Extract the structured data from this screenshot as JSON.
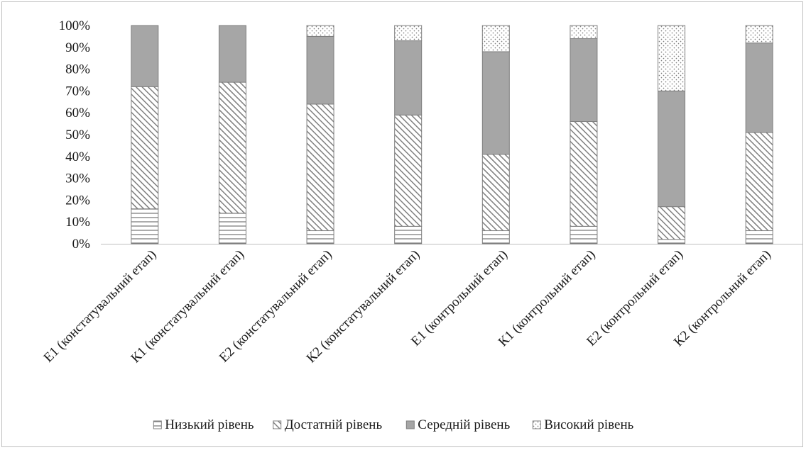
{
  "chart_data": {
    "type": "bar",
    "stacked": true,
    "title": "",
    "xlabel": "",
    "ylabel": "",
    "ylim": [
      0,
      100
    ],
    "y_ticks": [
      "0%",
      "10%",
      "20%",
      "30%",
      "40%",
      "50%",
      "60%",
      "70%",
      "80%",
      "90%",
      "100%"
    ],
    "grid": false,
    "legend_position": "bottom",
    "categories": [
      "Е1 (констатувальний етап)",
      "К1 (констатувальний етап)",
      "Е2 (констатувальний етап)",
      "К2 (констатувальний етап)",
      "Е1 (контрольний етап)",
      "К1 (контрольний етап)",
      "Е2 (контрольний етап)",
      "К2 (контрольний етап)"
    ],
    "series": [
      {
        "name": "Низький рівень",
        "pattern": "horizontal-lines",
        "values": [
          16,
          14,
          6,
          8,
          6,
          8,
          2,
          6
        ]
      },
      {
        "name": "Достатній рівень",
        "pattern": "diagonal-lines",
        "values": [
          56,
          60,
          58,
          51,
          35,
          48,
          15,
          45
        ]
      },
      {
        "name": "Середній рівень",
        "pattern": "solid-gray",
        "values": [
          28,
          26,
          31,
          34,
          47,
          38,
          53,
          41
        ]
      },
      {
        "name": "Високий рівень",
        "pattern": "dots",
        "values": [
          0,
          0,
          5,
          7,
          12,
          6,
          30,
          8
        ]
      }
    ],
    "colors": {
      "solid": "#a6a6a6",
      "stroke": "#7f7f7f",
      "hatch": "#7f7f7f",
      "axis": "#bfbfbf"
    }
  }
}
